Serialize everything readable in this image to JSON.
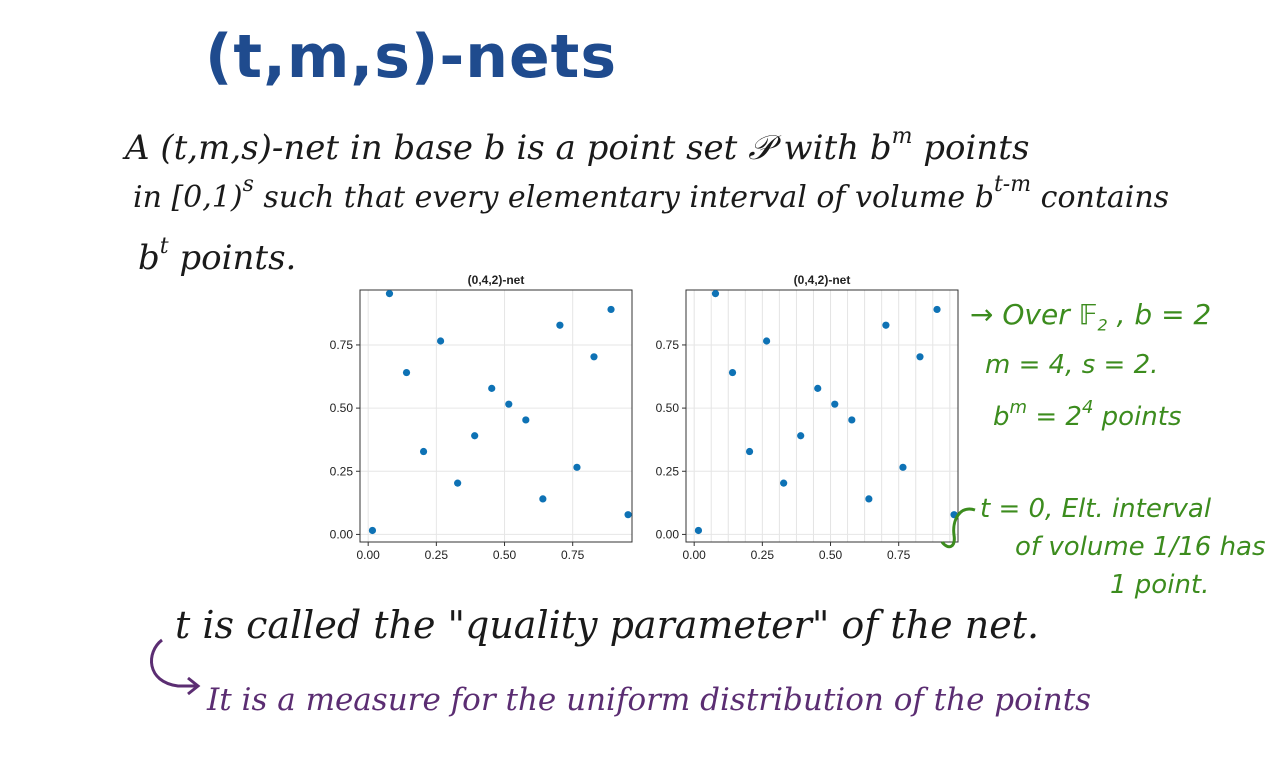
{
  "title": "(t,m,s)-nets",
  "definition": {
    "line1_a": "A (t,m,s)-net in base b is a point set",
    "line1_P": "𝒫",
    "line1_b": "with",
    "line1_base": "b",
    "line1_exp": "m",
    "line1_c": "points",
    "line2_a": "in [0,1)",
    "line2_s": "s",
    "line2_b": "such that every elementary interval of volume",
    "line2_base": "b",
    "line2_exp": "t-m",
    "line2_c": "contains",
    "line3_base": "b",
    "line3_exp": "t",
    "line3_c": "points."
  },
  "annotations": {
    "a1_arrow": "→",
    "a1": "Over",
    "a1_field": "𝔽",
    "a1_sub": "2",
    "a1_b": ", b = 2",
    "a2": "m = 4, s = 2.",
    "a3_base": "b",
    "a3_exp": "m",
    "a3_eq": "=",
    "a3_pow": "2",
    "a3_powexp": "4",
    "a3_c": "points",
    "a4": "t = 0, Elt. interval",
    "a5": "of volume",
    "a5_frac": "1/16",
    "a5_c": "has",
    "a6": "1 point."
  },
  "quality_line": "t is called the \"quality parameter\" of the net.",
  "measure_line": "It is a measure for the uniform distribution of the points",
  "colors": {
    "title": "#1f4b8e",
    "annotation": "#3c8c1e",
    "measure": "#5b2d72",
    "point": "#0e72b5"
  },
  "chart_data": [
    {
      "type": "scatter",
      "title": "(0,4,2)-net",
      "xlim": [
        -0.03,
        0.9675
      ],
      "ylim": [
        -0.03,
        0.9675
      ],
      "xticks": [
        "0.00",
        "0.25",
        "0.50",
        "0.75"
      ],
      "yticks": [
        "0.00",
        "0.25",
        "0.50",
        "0.75"
      ],
      "grid": "quarters",
      "x": [
        0.0156,
        0.0781,
        0.1406,
        0.2031,
        0.2656,
        0.3281,
        0.3906,
        0.4531,
        0.5156,
        0.5781,
        0.6406,
        0.7031,
        0.7656,
        0.8281,
        0.8906,
        0.9531
      ],
      "y": [
        0.0156,
        0.9531,
        0.6406,
        0.3281,
        0.7656,
        0.2031,
        0.3906,
        0.5781,
        0.5156,
        0.4531,
        0.1406,
        0.8281,
        0.2656,
        0.7031,
        0.8906,
        0.0781
      ]
    },
    {
      "type": "scatter",
      "title": "(0,4,2)-net",
      "xlim": [
        -0.03,
        0.9675
      ],
      "ylim": [
        -0.03,
        0.9675
      ],
      "xticks": [
        "0.00",
        "0.25",
        "0.50",
        "0.75"
      ],
      "yticks": [
        "0.00",
        "0.25",
        "0.50",
        "0.75"
      ],
      "grid": "sixteenths-vertical",
      "x": [
        0.0156,
        0.0781,
        0.1406,
        0.2031,
        0.2656,
        0.3281,
        0.3906,
        0.4531,
        0.5156,
        0.5781,
        0.6406,
        0.7031,
        0.7656,
        0.8281,
        0.8906,
        0.9531
      ],
      "y": [
        0.0156,
        0.9531,
        0.6406,
        0.3281,
        0.7656,
        0.2031,
        0.3906,
        0.5781,
        0.5156,
        0.4531,
        0.1406,
        0.8281,
        0.2656,
        0.7031,
        0.8906,
        0.0781
      ]
    }
  ]
}
